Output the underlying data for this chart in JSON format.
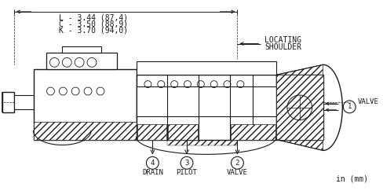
{
  "bg_color": "#ffffff",
  "line_color": "#1a1a1a",
  "dim_line1": "L - 3.44 (87,4)",
  "dim_line2": "C - 3.50 (88,9)",
  "dim_line3": "K - 3.70 (94,0)",
  "locating_label1": "LOCATING",
  "locating_label2": "SHOULDER",
  "label_drain": "DRAIN",
  "label_pilot": "PILOT",
  "label_valve2": "VALVE",
  "label_valve1": "VALVE",
  "unit_label": "in (mm)",
  "fig_width": 4.88,
  "fig_height": 2.43,
  "dpi": 100
}
